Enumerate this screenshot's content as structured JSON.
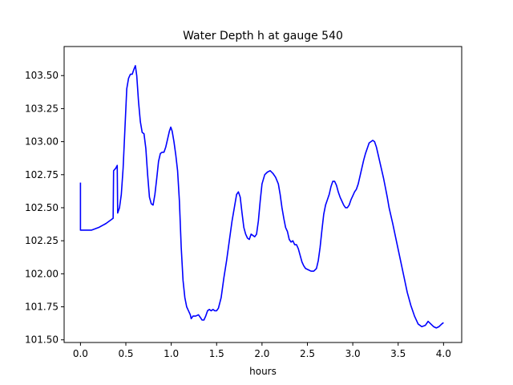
{
  "chart_data": {
    "type": "line",
    "title": "Water Depth h at gauge 540",
    "xlabel": "hours",
    "ylabel": "",
    "xlim": [
      -0.18,
      4.2
    ],
    "ylim": [
      101.48,
      103.72
    ],
    "xticks": [
      0.0,
      0.5,
      1.0,
      1.5,
      2.0,
      2.5,
      3.0,
      3.5,
      4.0
    ],
    "xtick_labels": [
      "0.0",
      "0.5",
      "1.0",
      "1.5",
      "2.0",
      "2.5",
      "3.0",
      "3.5",
      "4.0"
    ],
    "yticks": [
      101.5,
      101.75,
      102.0,
      102.25,
      102.5,
      102.75,
      103.0,
      103.25,
      103.5
    ],
    "ytick_labels": [
      "101.50",
      "101.75",
      "102.00",
      "102.25",
      "102.50",
      "102.75",
      "103.00",
      "103.25",
      "103.50"
    ],
    "grid": false,
    "series": [
      {
        "color": "#0000ff",
        "points": [
          [
            0.0,
            102.69
          ],
          [
            0.0,
            102.33
          ],
          [
            0.05,
            102.33
          ],
          [
            0.12,
            102.33
          ],
          [
            0.2,
            102.35
          ],
          [
            0.28,
            102.38
          ],
          [
            0.36,
            102.42
          ],
          [
            0.365,
            102.78
          ],
          [
            0.39,
            102.8
          ],
          [
            0.405,
            102.82
          ],
          [
            0.41,
            102.46
          ],
          [
            0.43,
            102.5
          ],
          [
            0.45,
            102.6
          ],
          [
            0.47,
            102.8
          ],
          [
            0.49,
            103.1
          ],
          [
            0.51,
            103.4
          ],
          [
            0.53,
            103.48
          ],
          [
            0.55,
            103.51
          ],
          [
            0.57,
            103.51
          ],
          [
            0.59,
            103.55
          ],
          [
            0.605,
            103.575
          ],
          [
            0.62,
            103.5
          ],
          [
            0.64,
            103.3
          ],
          [
            0.66,
            103.15
          ],
          [
            0.68,
            103.07
          ],
          [
            0.7,
            103.06
          ],
          [
            0.72,
            102.95
          ],
          [
            0.74,
            102.75
          ],
          [
            0.76,
            102.58
          ],
          [
            0.78,
            102.53
          ],
          [
            0.8,
            102.52
          ],
          [
            0.82,
            102.6
          ],
          [
            0.84,
            102.72
          ],
          [
            0.86,
            102.85
          ],
          [
            0.88,
            102.91
          ],
          [
            0.9,
            102.92
          ],
          [
            0.92,
            102.92
          ],
          [
            0.94,
            102.96
          ],
          [
            0.96,
            103.02
          ],
          [
            0.98,
            103.08
          ],
          [
            0.995,
            103.11
          ],
          [
            1.01,
            103.08
          ],
          [
            1.03,
            103.0
          ],
          [
            1.05,
            102.9
          ],
          [
            1.07,
            102.78
          ],
          [
            1.09,
            102.55
          ],
          [
            1.11,
            102.2
          ],
          [
            1.13,
            101.95
          ],
          [
            1.15,
            101.82
          ],
          [
            1.17,
            101.75
          ],
          [
            1.19,
            101.72
          ],
          [
            1.21,
            101.69
          ],
          [
            1.22,
            101.66
          ],
          [
            1.24,
            101.68
          ],
          [
            1.27,
            101.68
          ],
          [
            1.3,
            101.69
          ],
          [
            1.32,
            101.67
          ],
          [
            1.34,
            101.65
          ],
          [
            1.36,
            101.65
          ],
          [
            1.38,
            101.68
          ],
          [
            1.4,
            101.72
          ],
          [
            1.42,
            101.73
          ],
          [
            1.44,
            101.72
          ],
          [
            1.46,
            101.73
          ],
          [
            1.48,
            101.72
          ],
          [
            1.5,
            101.72
          ],
          [
            1.52,
            101.74
          ],
          [
            1.55,
            101.82
          ],
          [
            1.58,
            101.97
          ],
          [
            1.61,
            102.1
          ],
          [
            1.64,
            102.25
          ],
          [
            1.67,
            102.4
          ],
          [
            1.7,
            102.52
          ],
          [
            1.72,
            102.6
          ],
          [
            1.74,
            102.62
          ],
          [
            1.76,
            102.58
          ],
          [
            1.78,
            102.46
          ],
          [
            1.8,
            102.35
          ],
          [
            1.82,
            102.3
          ],
          [
            1.84,
            102.27
          ],
          [
            1.86,
            102.26
          ],
          [
            1.88,
            102.3
          ],
          [
            1.9,
            102.29
          ],
          [
            1.92,
            102.28
          ],
          [
            1.94,
            102.3
          ],
          [
            1.96,
            102.4
          ],
          [
            1.98,
            102.55
          ],
          [
            2.0,
            102.68
          ],
          [
            2.03,
            102.75
          ],
          [
            2.06,
            102.77
          ],
          [
            2.09,
            102.78
          ],
          [
            2.12,
            102.76
          ],
          [
            2.15,
            102.73
          ],
          [
            2.18,
            102.68
          ],
          [
            2.2,
            102.6
          ],
          [
            2.22,
            102.5
          ],
          [
            2.24,
            102.42
          ],
          [
            2.26,
            102.35
          ],
          [
            2.28,
            102.32
          ],
          [
            2.3,
            102.26
          ],
          [
            2.32,
            102.24
          ],
          [
            2.34,
            102.25
          ],
          [
            2.36,
            102.22
          ],
          [
            2.38,
            102.22
          ],
          [
            2.4,
            102.19
          ],
          [
            2.42,
            102.14
          ],
          [
            2.44,
            102.09
          ],
          [
            2.46,
            102.06
          ],
          [
            2.48,
            102.04
          ],
          [
            2.51,
            102.03
          ],
          [
            2.54,
            102.02
          ],
          [
            2.57,
            102.02
          ],
          [
            2.6,
            102.04
          ],
          [
            2.62,
            102.1
          ],
          [
            2.64,
            102.2
          ],
          [
            2.66,
            102.33
          ],
          [
            2.68,
            102.45
          ],
          [
            2.7,
            102.52
          ],
          [
            2.72,
            102.56
          ],
          [
            2.74,
            102.6
          ],
          [
            2.76,
            102.66
          ],
          [
            2.78,
            102.7
          ],
          [
            2.8,
            102.7
          ],
          [
            2.82,
            102.67
          ],
          [
            2.84,
            102.62
          ],
          [
            2.86,
            102.58
          ],
          [
            2.88,
            102.55
          ],
          [
            2.9,
            102.52
          ],
          [
            2.92,
            102.5
          ],
          [
            2.94,
            102.5
          ],
          [
            2.96,
            102.52
          ],
          [
            2.98,
            102.56
          ],
          [
            3.0,
            102.59
          ],
          [
            3.02,
            102.62
          ],
          [
            3.04,
            102.64
          ],
          [
            3.06,
            102.68
          ],
          [
            3.08,
            102.74
          ],
          [
            3.1,
            102.8
          ],
          [
            3.12,
            102.86
          ],
          [
            3.14,
            102.91
          ],
          [
            3.16,
            102.95
          ],
          [
            3.18,
            102.99
          ],
          [
            3.2,
            103.0
          ],
          [
            3.22,
            103.01
          ],
          [
            3.24,
            103.0
          ],
          [
            3.26,
            102.96
          ],
          [
            3.28,
            102.9
          ],
          [
            3.3,
            102.84
          ],
          [
            3.32,
            102.78
          ],
          [
            3.34,
            102.72
          ],
          [
            3.36,
            102.65
          ],
          [
            3.38,
            102.58
          ],
          [
            3.4,
            102.5
          ],
          [
            3.44,
            102.38
          ],
          [
            3.48,
            102.25
          ],
          [
            3.52,
            102.12
          ],
          [
            3.56,
            101.99
          ],
          [
            3.6,
            101.86
          ],
          [
            3.64,
            101.76
          ],
          [
            3.68,
            101.68
          ],
          [
            3.72,
            101.62
          ],
          [
            3.76,
            101.6
          ],
          [
            3.8,
            101.61
          ],
          [
            3.83,
            101.64
          ],
          [
            3.86,
            101.62
          ],
          [
            3.89,
            101.6
          ],
          [
            3.92,
            101.59
          ],
          [
            3.95,
            101.6
          ],
          [
            3.98,
            101.62
          ],
          [
            4.0,
            101.63
          ]
        ]
      }
    ]
  }
}
